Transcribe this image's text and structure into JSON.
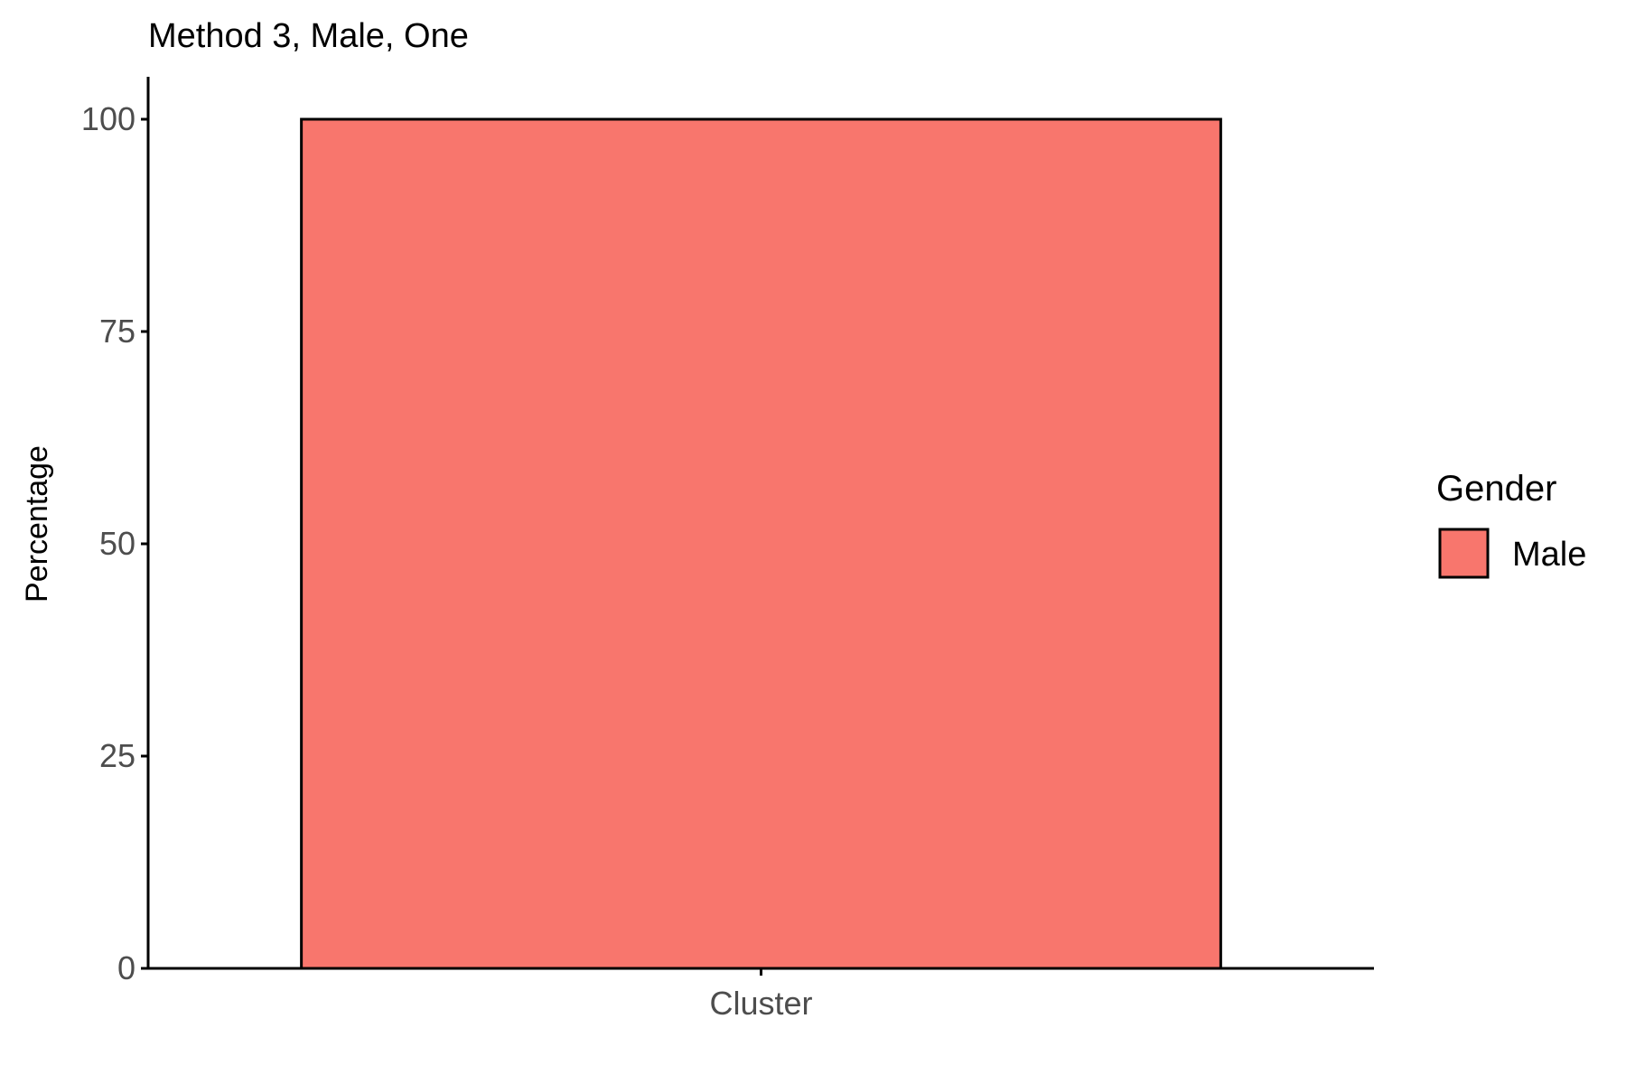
{
  "chart_data": {
    "type": "bar",
    "title": "Method 3, Male, One",
    "xlabel": "",
    "ylabel": "Percentage",
    "categories": [
      "Cluster"
    ],
    "series": [
      {
        "name": "Male",
        "values": [
          100
        ],
        "color": "#F8766D"
      }
    ],
    "y_ticks": [
      0,
      25,
      50,
      75,
      100
    ],
    "ylim": [
      0,
      105
    ],
    "grid": false,
    "legend": {
      "title": "Gender",
      "placement": "right",
      "items": [
        {
          "label": "Male",
          "color": "#F8766D"
        }
      ]
    }
  }
}
